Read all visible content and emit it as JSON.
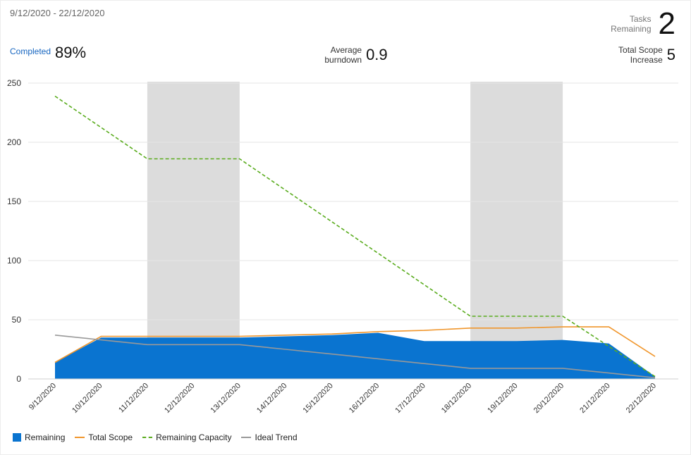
{
  "header": {
    "date_range": "9/12/2020 - 22/12/2020",
    "tasks_label_1": "Tasks",
    "tasks_label_2": "Remaining",
    "tasks_value": "2",
    "completed_label": "Completed",
    "completed_value": "89%",
    "avg_label_1": "Average",
    "avg_label_2": "burndown",
    "avg_value": "0.9",
    "scope_label_1": "Total Scope",
    "scope_label_2": "Increase",
    "scope_value": "5"
  },
  "colors": {
    "remaining": "#0a74d0",
    "total_scope": "#f0962c",
    "remaining_capacity": "#5aac1e",
    "ideal_trend": "#999999",
    "non_working": "#dcdcdc",
    "grid": "#e6e6e6",
    "axis_text": "#333333"
  },
  "chart_data": {
    "type": "area",
    "categories": [
      "9/12/2020",
      "10/12/2020",
      "11/12/2020",
      "12/12/2020",
      "13/12/2020",
      "14/12/2020",
      "15/12/2020",
      "16/12/2020",
      "17/12/2020",
      "18/12/2020",
      "19/12/2020",
      "20/12/2020",
      "21/12/2020",
      "22/12/2020"
    ],
    "ylim": [
      0,
      250
    ],
    "yticks": [
      0,
      50,
      100,
      150,
      200,
      250
    ],
    "grid": true,
    "legend_position": "bottom-left",
    "non_working_days": [
      [
        "11/12/2020",
        "13/12/2020"
      ],
      [
        "18/12/2020",
        "20/12/2020"
      ]
    ],
    "series": [
      {
        "name": "Remaining",
        "style": "area",
        "values": [
          14,
          35,
          35,
          35,
          35,
          36,
          37,
          39,
          32,
          32,
          32,
          33,
          30,
          2
        ]
      },
      {
        "name": "Total Scope",
        "style": "line",
        "values": [
          14,
          36,
          36,
          36,
          36,
          37,
          38,
          40,
          41,
          43,
          43,
          44,
          44,
          19
        ]
      },
      {
        "name": "Remaining Capacity",
        "style": "dashed",
        "values": [
          239,
          null,
          186,
          null,
          186,
          null,
          null,
          null,
          null,
          53,
          null,
          53,
          null,
          2
        ]
      },
      {
        "name": "Ideal Trend",
        "style": "line",
        "values": [
          37,
          33,
          29,
          29,
          29,
          25,
          21,
          17,
          13,
          9,
          9,
          9,
          5,
          1
        ]
      }
    ]
  }
}
